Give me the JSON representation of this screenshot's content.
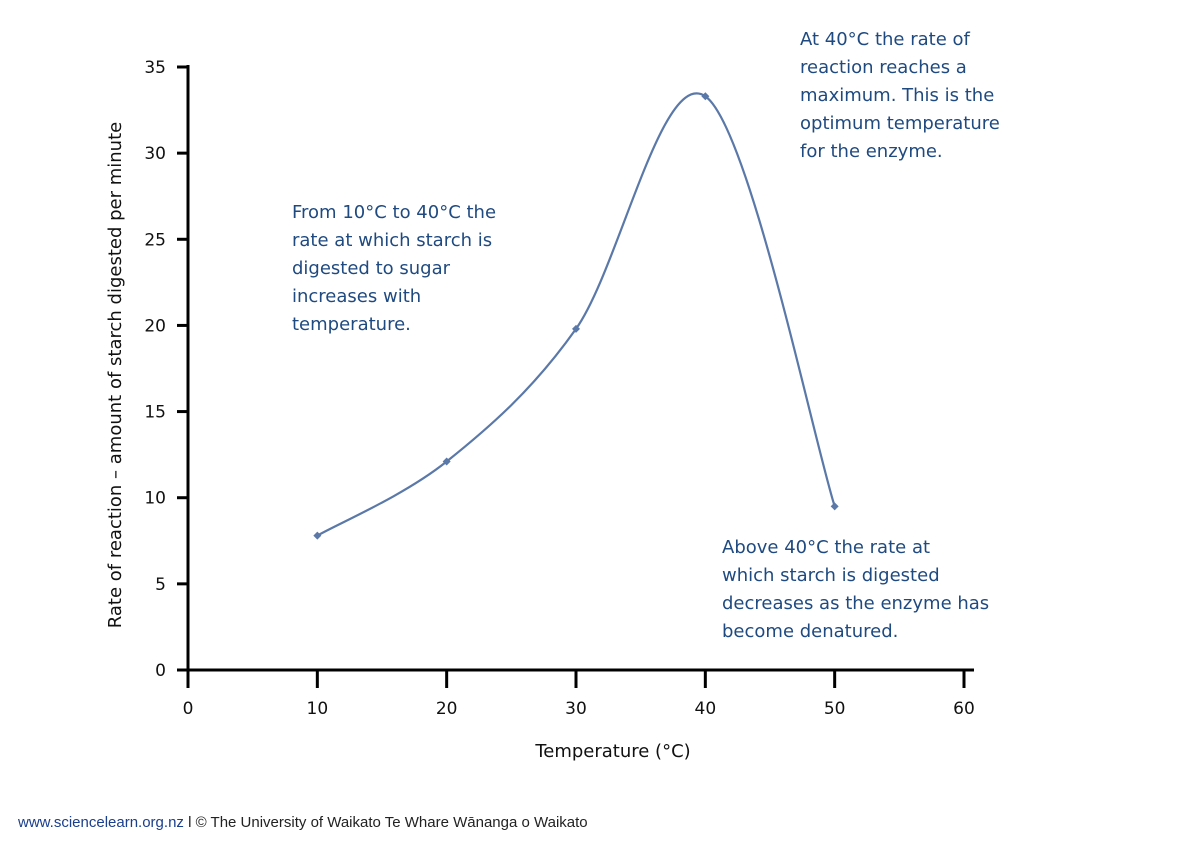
{
  "chart_data": {
    "type": "line",
    "title": "",
    "xlabel": "Temperature (°C)",
    "ylabel": "Rate of reaction – amount of starch digested per minute",
    "xlim": [
      0,
      60
    ],
    "ylim": [
      0,
      35
    ],
    "x_ticks": [
      "0",
      "10",
      "20",
      "30",
      "40",
      "50",
      "60"
    ],
    "y_ticks": [
      "0",
      "5",
      "10",
      "15",
      "20",
      "25",
      "30",
      "35"
    ],
    "grid": false,
    "smooth": true,
    "x": [
      10,
      20,
      30,
      40,
      50
    ],
    "values": [
      7.8,
      12.1,
      19.8,
      33.3,
      9.5
    ],
    "line_color": "#5a78a8",
    "annotations": [
      {
        "lines": [
          "From 10°C to 40°C the",
          "rate at which starch is",
          "digested to sugar",
          "increases with",
          "temperature."
        ]
      },
      {
        "lines": [
          "At 40°C the rate of",
          "reaction reaches a",
          "maximum. This is the",
          "optimum temperature",
          "for the enzyme."
        ]
      },
      {
        "lines": [
          "Above 40°C the rate at",
          "which starch is digested",
          "decreases as the enzyme has",
          "become denatured."
        ]
      }
    ],
    "annotation_color": "#1f4a80"
  },
  "footer": {
    "link": "www.sciencelearn.org.nz",
    "text": " l © The University of Waikato Te Whare Wānanga o Waikato"
  }
}
